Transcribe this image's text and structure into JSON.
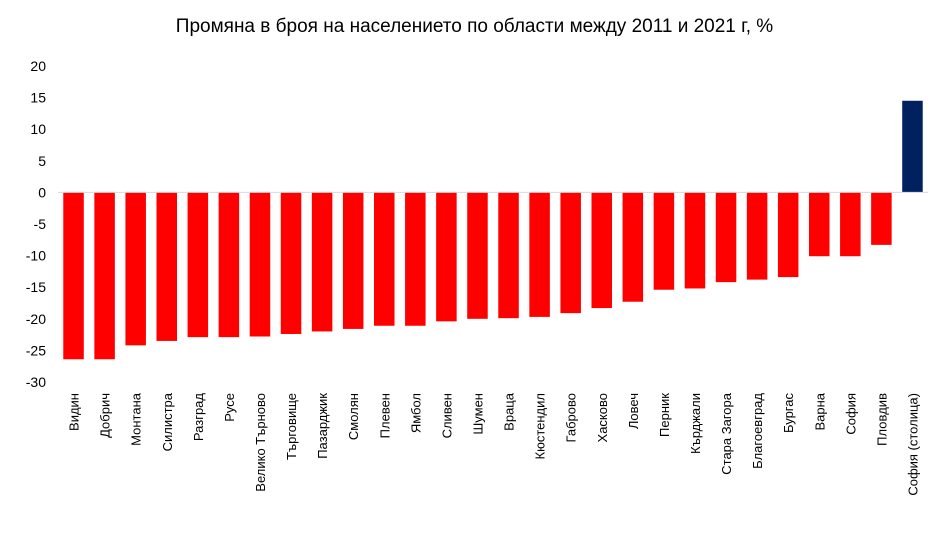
{
  "chart_data": {
    "type": "bar",
    "title": "Промяна в броя на населението по области между 2011 и 2021 г, %",
    "xlabel": "",
    "ylabel": "",
    "ylim": [
      -30,
      20
    ],
    "yticks": [
      20,
      15,
      10,
      5,
      0,
      -5,
      -10,
      -15,
      -20,
      -25,
      -30
    ],
    "grid": false,
    "categories": [
      "Видин",
      "Добрич",
      "Монтана",
      "Силистра",
      "Разград",
      "Русе",
      "Велико Търново",
      "Търговище",
      "Пазарджик",
      "Смолян",
      "Плевен",
      "Ямбол",
      "Сливен",
      "Шумен",
      "Враца",
      "Кюстендил",
      "Габрово",
      "Хасково",
      "Ловеч",
      "Перник",
      "Кърджали",
      "Стара Загора",
      "Благоевград",
      "Бургас",
      "Варна",
      "София",
      "Пловдив",
      "София (столица)"
    ],
    "values": [
      -26.4,
      -26.4,
      -24.2,
      -23.5,
      -22.9,
      -22.9,
      -22.8,
      -22.4,
      -22.0,
      -21.6,
      -21.1,
      -21.1,
      -20.4,
      -20.0,
      -19.9,
      -19.7,
      -19.1,
      -18.3,
      -17.3,
      -15.4,
      -15.2,
      -14.2,
      -13.8,
      -13.4,
      -10.1,
      -10.1,
      -8.3,
      14.5
    ],
    "colors": {
      "negative": "#ff0000",
      "positive": "#002060"
    }
  }
}
